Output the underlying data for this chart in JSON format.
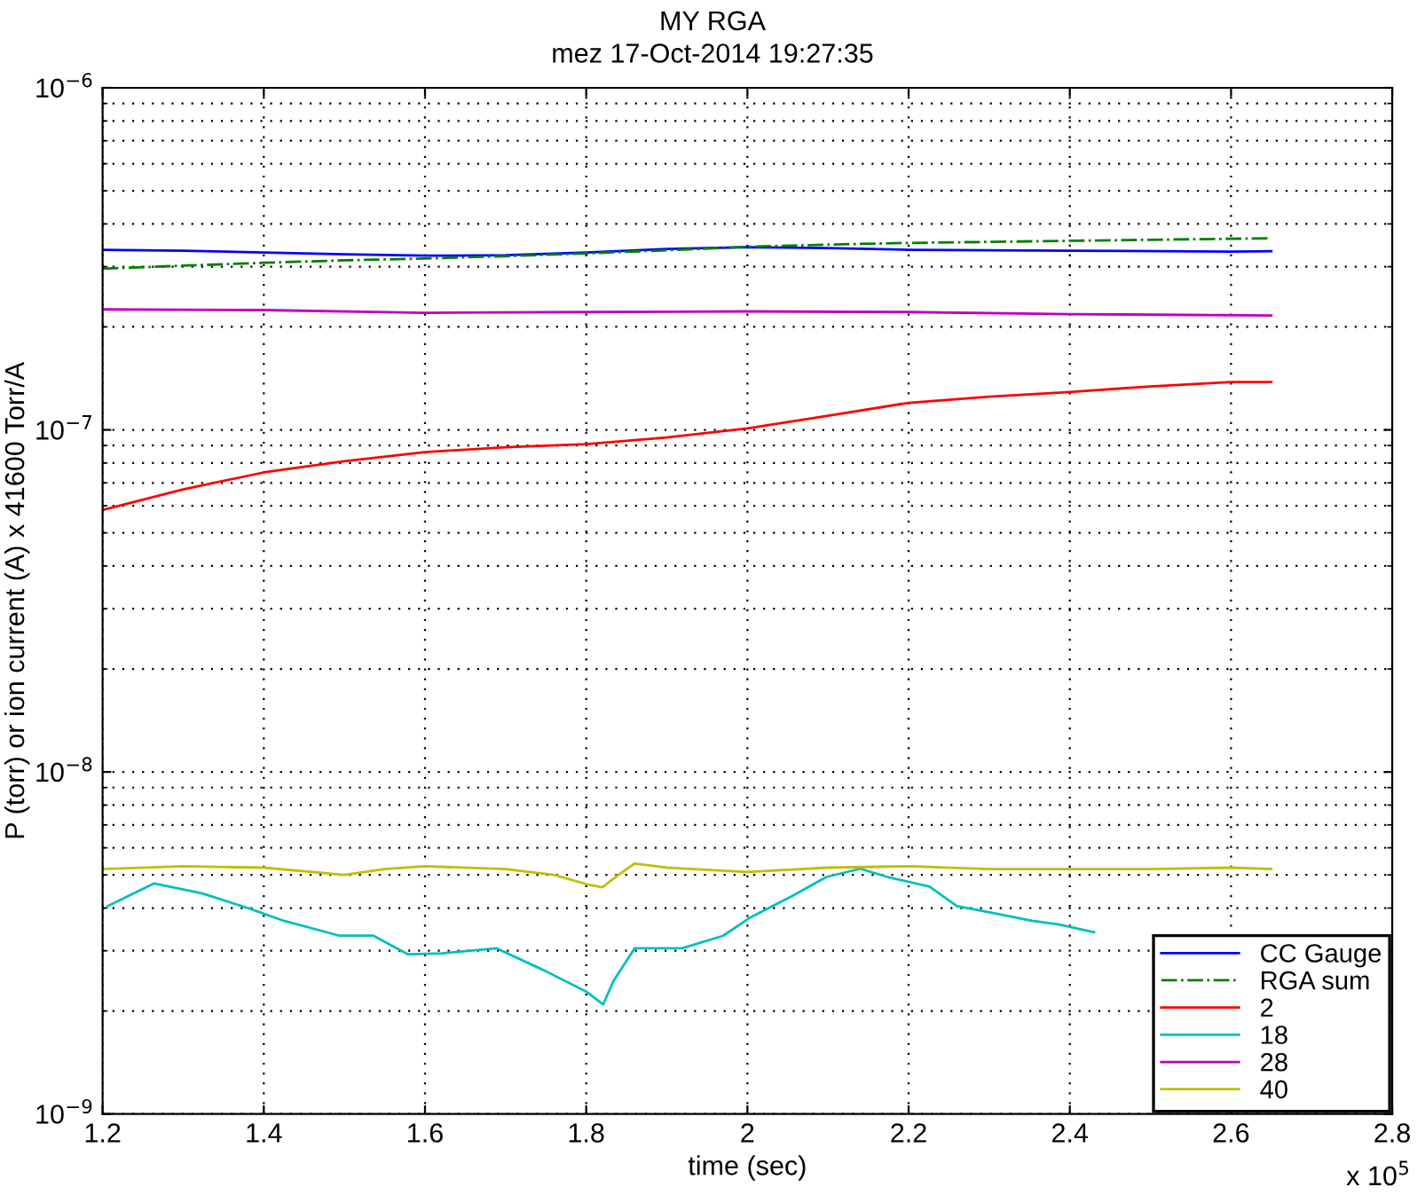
{
  "chart_data": {
    "type": "line",
    "title": "MY RGA",
    "subtitle": "mez 17-Oct-2014 19:27:35",
    "xlabel": "time (sec)",
    "ylabel": "P (torr) or ion current (A) x 41600 Torr/A",
    "annotations": [
      "x 10$^{5}$"
    ],
    "xlim": [
      1.2,
      2.8
    ],
    "xticks": [
      1.2,
      1.4,
      1.6,
      1.8,
      2,
      2.2,
      2.4,
      2.6,
      2.8
    ],
    "ylim": [
      1e-09,
      1e-06
    ],
    "yticks": [
      {
        "value": 1e-09,
        "label": "10$^{−9}$"
      },
      {
        "value": 1e-08,
        "label": "10$^{−8}$"
      },
      {
        "value": 1e-07,
        "label": "10$^{−7}$"
      },
      {
        "value": 1e-06,
        "label": "10$^{−6}$"
      }
    ],
    "log": "y",
    "grid": true,
    "legend": "bottom right",
    "series": [
      {
        "name": "CC Gauge",
        "color": "#0000ff",
        "line_style": "solid",
        "x": [
          1.2,
          1.3,
          1.4,
          1.5,
          1.6,
          1.7,
          1.8,
          1.9,
          2.0,
          2.1,
          2.2,
          2.4,
          2.6,
          2.65
        ],
        "values": [
          3.36e-07,
          3.34e-07,
          3.3e-07,
          3.26e-07,
          3.23e-07,
          3.24e-07,
          3.3e-07,
          3.38e-07,
          3.42e-07,
          3.4e-07,
          3.36e-07,
          3.34e-07,
          3.32e-07,
          3.33e-07
        ]
      },
      {
        "name": "RGA sum",
        "color": "#008000",
        "line_style": "dashdot",
        "x": [
          1.2,
          1.3,
          1.4,
          1.5,
          1.6,
          1.7,
          1.8,
          1.9,
          2.0,
          2.1,
          2.2,
          2.4,
          2.6,
          2.65
        ],
        "values": [
          2.96e-07,
          3.02e-07,
          3.08e-07,
          3.13e-07,
          3.17e-07,
          3.22e-07,
          3.28e-07,
          3.35e-07,
          3.43e-07,
          3.48e-07,
          3.52e-07,
          3.57e-07,
          3.62e-07,
          3.63e-07
        ]
      },
      {
        "name": "2",
        "color": "#ff0000",
        "line_style": "solid",
        "x": [
          1.2,
          1.3,
          1.4,
          1.5,
          1.6,
          1.7,
          1.8,
          1.9,
          2.0,
          2.1,
          2.2,
          2.3,
          2.4,
          2.5,
          2.6,
          2.65
        ],
        "values": [
          5.83e-08,
          6.7e-08,
          7.51e-08,
          8.1e-08,
          8.61e-08,
          8.9e-08,
          9.08e-08,
          9.5e-08,
          1.01e-07,
          1.1e-07,
          1.2e-07,
          1.25e-07,
          1.29e-07,
          1.34e-07,
          1.38e-07,
          1.38e-07
        ]
      },
      {
        "name": "18",
        "color": "#00bfbf",
        "line_style": "solid",
        "x": [
          1.206,
          1.264,
          1.323,
          1.383,
          1.425,
          1.494,
          1.536,
          1.579,
          1.621,
          1.689,
          1.749,
          1.8,
          1.821,
          1.834,
          1.86,
          1.919,
          1.97,
          2.004,
          2.055,
          2.098,
          2.14,
          2.174,
          2.226,
          2.26,
          2.302,
          2.353,
          2.387,
          2.43
        ],
        "values": [
          4.05e-09,
          4.72e-09,
          4.42e-09,
          3.98e-09,
          3.67e-09,
          3.32e-09,
          3.32e-09,
          2.93e-09,
          2.95e-09,
          3.05e-09,
          2.62e-09,
          2.28e-09,
          2.09e-09,
          2.45e-09,
          3.05e-09,
          3.05e-09,
          3.32e-09,
          3.76e-09,
          4.33e-09,
          4.93e-09,
          5.21e-09,
          4.93e-09,
          4.62e-09,
          4.05e-09,
          3.88e-09,
          3.67e-09,
          3.58e-09,
          3.4e-09
        ]
      },
      {
        "name": "28",
        "color": "#bf00bf",
        "line_style": "solid",
        "x": [
          1.2,
          1.4,
          1.6,
          1.8,
          2.0,
          2.2,
          2.4,
          2.65
        ],
        "values": [
          2.25e-07,
          2.24e-07,
          2.2e-07,
          2.21e-07,
          2.22e-07,
          2.21e-07,
          2.18e-07,
          2.16e-07
        ]
      },
      {
        "name": "40",
        "color": "#bfbf00",
        "line_style": "solid",
        "x": [
          1.2,
          1.3,
          1.4,
          1.5,
          1.55,
          1.6,
          1.7,
          1.76,
          1.8,
          1.82,
          1.84,
          1.86,
          1.9,
          2.0,
          2.1,
          2.2,
          2.3,
          2.4,
          2.5,
          2.6,
          2.65
        ],
        "values": [
          5.2e-09,
          5.3e-09,
          5.25e-09,
          5e-09,
          5.2e-09,
          5.3e-09,
          5.2e-09,
          5e-09,
          4.7e-09,
          4.6e-09,
          5e-09,
          5.4e-09,
          5.25e-09,
          5.1e-09,
          5.25e-09,
          5.3e-09,
          5.2e-09,
          5.2e-09,
          5.2e-09,
          5.25e-09,
          5.2e-09
        ]
      }
    ]
  }
}
